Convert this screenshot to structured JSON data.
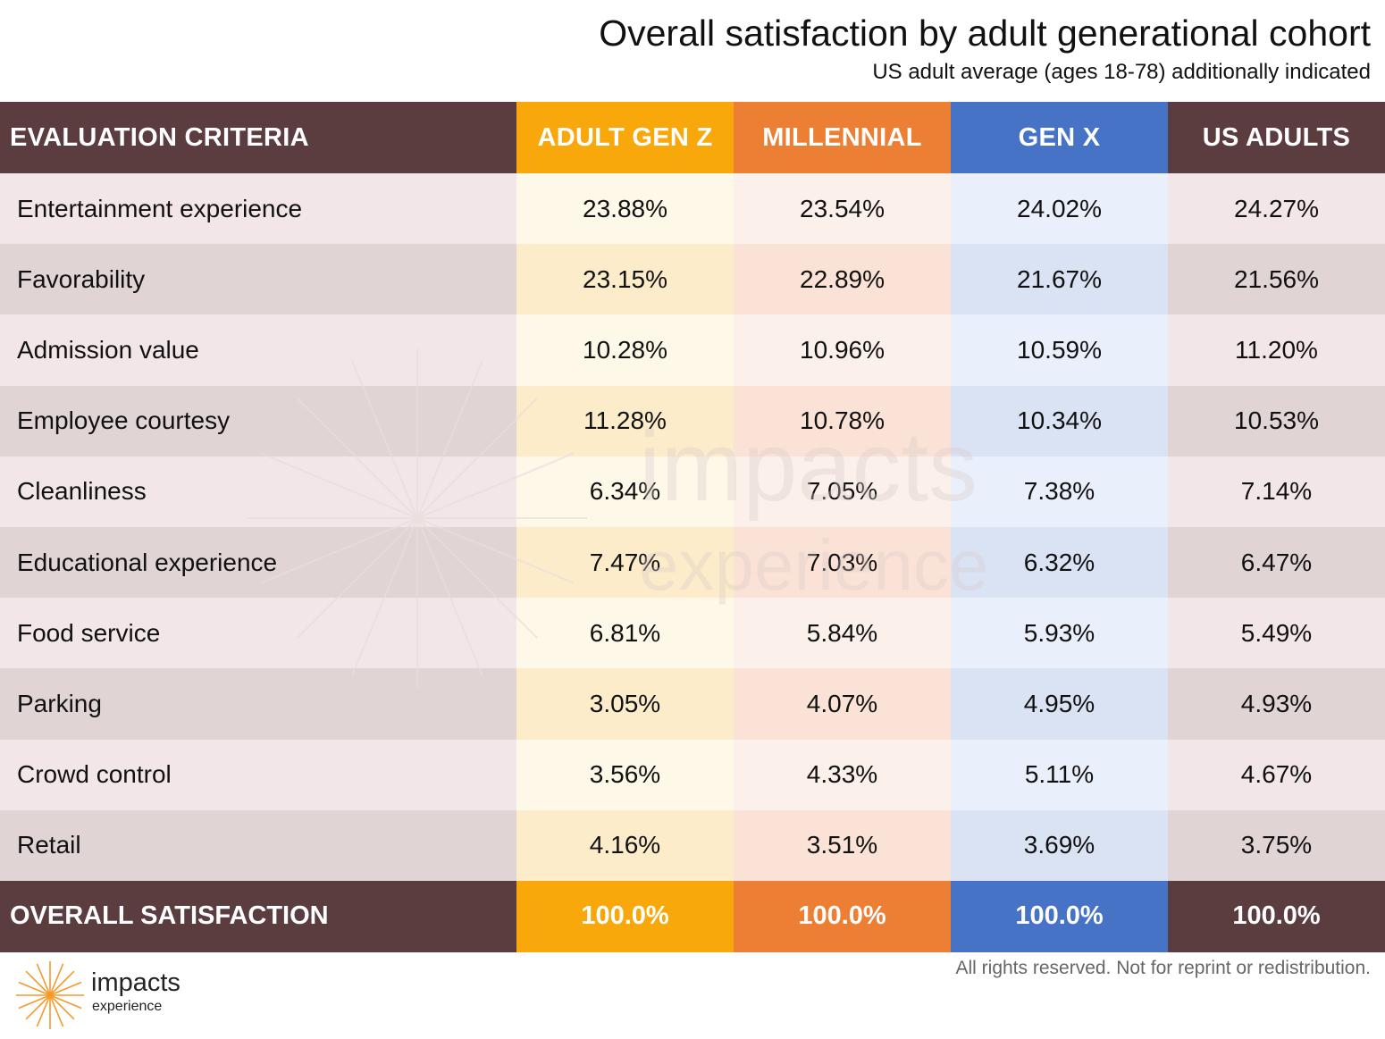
{
  "title": "Overall satisfaction by adult generational cohort",
  "subtitle": "US adult average (ages 18-78) additionally indicated",
  "footer_note": "All rights reserved. Not for reprint or redistribution.",
  "logo": {
    "name": "impacts",
    "sub": "experience"
  },
  "watermark": {
    "line1": "impacts",
    "line2": "experience"
  },
  "colors": {
    "header_dark": "#5b3d40",
    "gen_z": "#f9a80b",
    "millennial": "#ec7f33",
    "gen_x": "#4673c5",
    "us_adults": "#5b3d40",
    "logo_orange": "#f39a2b"
  },
  "chart_data": {
    "type": "table",
    "header": {
      "criteria": "EVALUATION CRITERIA",
      "columns": [
        "ADULT GEN Z",
        "MILLENNIAL",
        "GEN X",
        "US ADULTS"
      ]
    },
    "rows": [
      {
        "label": "Entertainment experience",
        "values": [
          "23.88%",
          "23.54%",
          "24.02%",
          "24.27%"
        ]
      },
      {
        "label": "Favorability",
        "values": [
          "23.15%",
          "22.89%",
          "21.67%",
          "21.56%"
        ]
      },
      {
        "label": "Admission value",
        "values": [
          "10.28%",
          "10.96%",
          "10.59%",
          "11.20%"
        ]
      },
      {
        "label": "Employee courtesy",
        "values": [
          "11.28%",
          "10.78%",
          "10.34%",
          "10.53%"
        ]
      },
      {
        "label": "Cleanliness",
        "values": [
          "6.34%",
          "7.05%",
          "7.38%",
          "7.14%"
        ]
      },
      {
        "label": "Educational experience",
        "values": [
          "7.47%",
          "7.03%",
          "6.32%",
          "6.47%"
        ]
      },
      {
        "label": "Food service",
        "values": [
          "6.81%",
          "5.84%",
          "5.93%",
          "5.49%"
        ]
      },
      {
        "label": "Parking",
        "values": [
          "3.05%",
          "4.07%",
          "4.95%",
          "4.93%"
        ]
      },
      {
        "label": "Crowd control",
        "values": [
          "3.56%",
          "4.33%",
          "5.11%",
          "4.67%"
        ]
      },
      {
        "label": "Retail",
        "values": [
          "4.16%",
          "3.51%",
          "3.69%",
          "3.75%"
        ]
      }
    ],
    "total": {
      "label": "OVERALL SATISFACTION",
      "values": [
        "100.0%",
        "100.0%",
        "100.0%",
        "100.0%"
      ]
    }
  }
}
